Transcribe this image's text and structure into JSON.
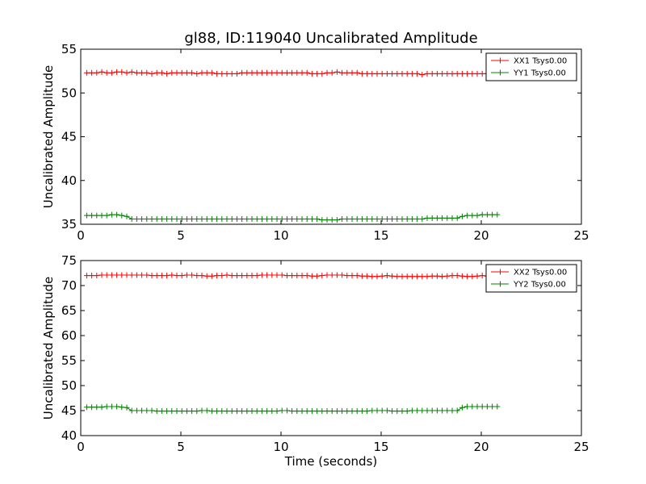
{
  "title": "gl88, ID:119040 Uncalibrated Amplitude",
  "chart_data": [
    {
      "type": "line",
      "title": "gl88, ID:119040 Uncalibrated Amplitude",
      "xlabel": "",
      "ylabel": "Uncalibrated Amplitude",
      "xlim": [
        0,
        25
      ],
      "ylim": [
        35,
        55
      ],
      "xticks": [
        0,
        5,
        10,
        15,
        20,
        25
      ],
      "yticks": [
        35,
        40,
        45,
        50,
        55
      ],
      "legend": "top-right",
      "grid": false,
      "x_start": 0.3,
      "x_step": 0.25,
      "series": [
        {
          "name": "XX1 Tsys0.00",
          "color": "#ff0000",
          "values": [
            52.3,
            52.3,
            52.3,
            52.4,
            52.3,
            52.3,
            52.4,
            52.4,
            52.3,
            52.4,
            52.3,
            52.3,
            52.3,
            52.2,
            52.3,
            52.3,
            52.2,
            52.3,
            52.3,
            52.3,
            52.3,
            52.3,
            52.2,
            52.3,
            52.3,
            52.3,
            52.2,
            52.2,
            52.2,
            52.2,
            52.2,
            52.3,
            52.3,
            52.3,
            52.3,
            52.3,
            52.3,
            52.3,
            52.3,
            52.3,
            52.3,
            52.3,
            52.3,
            52.3,
            52.3,
            52.2,
            52.2,
            52.2,
            52.3,
            52.3,
            52.4,
            52.3,
            52.3,
            52.3,
            52.3,
            52.2,
            52.2,
            52.2,
            52.2,
            52.2,
            52.2,
            52.2,
            52.2,
            52.2,
            52.2,
            52.2,
            52.2,
            52.1,
            52.2,
            52.2,
            52.2,
            52.2,
            52.2,
            52.2,
            52.2,
            52.2,
            52.2,
            52.2,
            52.2,
            52.2,
            52.2,
            52.2,
            52.2
          ]
        },
        {
          "name": "YY1 Tsys0.00",
          "color": "#008000",
          "values": [
            36.0,
            36.0,
            36.0,
            36.0,
            36.0,
            36.1,
            36.1,
            36.0,
            35.9,
            35.6,
            35.6,
            35.6,
            35.6,
            35.6,
            35.6,
            35.6,
            35.6,
            35.6,
            35.6,
            35.6,
            35.6,
            35.6,
            35.6,
            35.6,
            35.6,
            35.6,
            35.6,
            35.6,
            35.6,
            35.6,
            35.6,
            35.6,
            35.6,
            35.6,
            35.6,
            35.6,
            35.6,
            35.6,
            35.6,
            35.6,
            35.6,
            35.6,
            35.6,
            35.6,
            35.6,
            35.6,
            35.6,
            35.5,
            35.5,
            35.5,
            35.5,
            35.6,
            35.6,
            35.6,
            35.6,
            35.6,
            35.6,
            35.6,
            35.6,
            35.6,
            35.6,
            35.6,
            35.6,
            35.6,
            35.6,
            35.6,
            35.6,
            35.6,
            35.7,
            35.7,
            35.7,
            35.7,
            35.7,
            35.7,
            35.7,
            35.9,
            36.0,
            36.0,
            36.0,
            36.1,
            36.1,
            36.1,
            36.1
          ]
        }
      ]
    },
    {
      "type": "line",
      "title": "",
      "xlabel": "Time (seconds)",
      "ylabel": "Uncalibrated Amplitude",
      "xlim": [
        0,
        25
      ],
      "ylim": [
        40,
        75
      ],
      "xticks": [
        0,
        5,
        10,
        15,
        20,
        25
      ],
      "yticks": [
        40,
        45,
        50,
        55,
        60,
        65,
        70,
        75
      ],
      "legend": "top-right",
      "grid": false,
      "x_start": 0.3,
      "x_step": 0.25,
      "series": [
        {
          "name": "XX2 Tsys0.00",
          "color": "#ff0000",
          "values": [
            72.0,
            72.0,
            72.0,
            72.1,
            72.1,
            72.1,
            72.1,
            72.1,
            72.1,
            72.1,
            72.1,
            72.1,
            72.1,
            72.0,
            72.0,
            72.0,
            72.0,
            72.1,
            72.0,
            72.0,
            72.1,
            72.1,
            72.0,
            72.0,
            71.9,
            71.9,
            72.0,
            72.0,
            72.1,
            72.0,
            72.0,
            72.0,
            72.0,
            72.0,
            72.0,
            72.1,
            72.1,
            72.1,
            72.1,
            72.1,
            72.0,
            72.0,
            72.0,
            72.0,
            72.0,
            71.9,
            71.9,
            72.0,
            72.1,
            72.1,
            72.1,
            72.1,
            72.0,
            72.0,
            72.0,
            71.9,
            71.9,
            71.8,
            71.8,
            71.9,
            72.0,
            71.9,
            71.8,
            71.8,
            71.8,
            71.8,
            71.8,
            71.8,
            71.8,
            71.9,
            71.9,
            71.8,
            71.9,
            72.0,
            72.0,
            71.9,
            71.8,
            71.8,
            71.9,
            72.0,
            71.9,
            71.9,
            71.9
          ]
        },
        {
          "name": "YY2 Tsys0.00",
          "color": "#008000",
          "values": [
            45.7,
            45.7,
            45.7,
            45.7,
            45.8,
            45.8,
            45.8,
            45.7,
            45.6,
            45.0,
            45.0,
            45.0,
            45.0,
            45.0,
            44.9,
            44.9,
            44.9,
            44.9,
            44.9,
            44.9,
            44.9,
            44.9,
            44.9,
            45.0,
            45.0,
            44.9,
            44.9,
            44.9,
            44.9,
            44.9,
            44.9,
            44.9,
            44.9,
            44.9,
            44.9,
            44.9,
            44.9,
            44.9,
            44.9,
            45.0,
            45.0,
            44.9,
            44.9,
            44.9,
            44.9,
            44.9,
            44.9,
            44.9,
            44.9,
            44.9,
            44.9,
            44.9,
            44.9,
            44.9,
            44.9,
            44.9,
            44.9,
            45.0,
            45.0,
            45.0,
            45.0,
            44.9,
            44.9,
            44.9,
            44.9,
            45.0,
            45.0,
            45.0,
            45.0,
            45.0,
            45.0,
            45.0,
            45.0,
            45.0,
            45.0,
            45.6,
            45.8,
            45.8,
            45.8,
            45.8,
            45.8,
            45.8,
            45.8
          ]
        }
      ]
    }
  ]
}
